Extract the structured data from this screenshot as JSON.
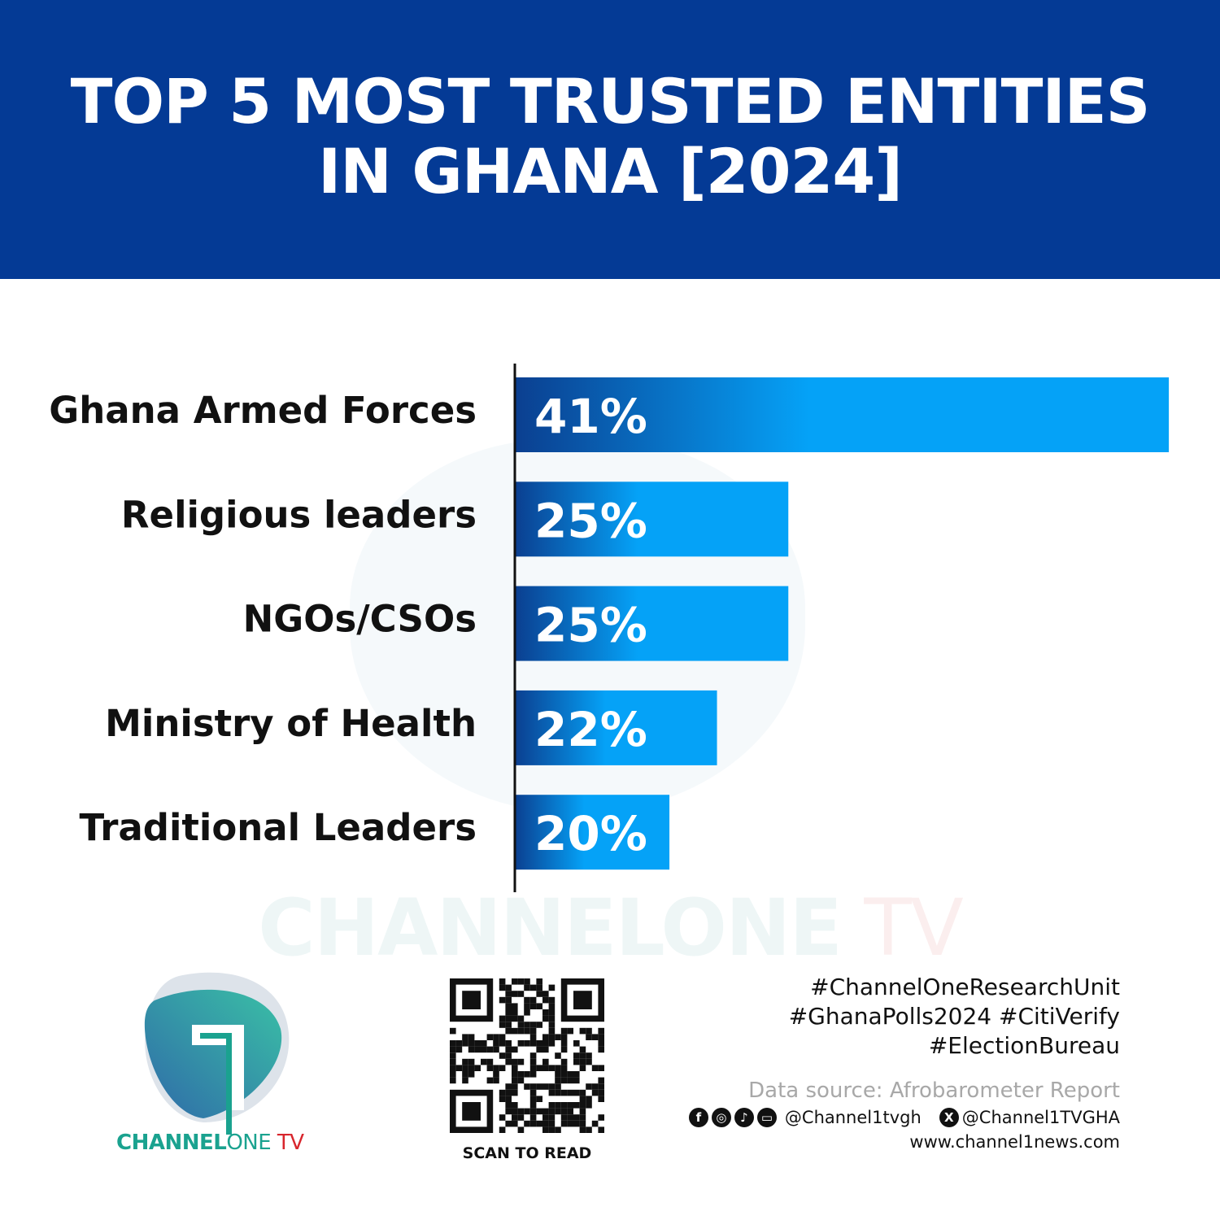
{
  "header": {
    "title_line1": "TOP 5 MOST TRUSTED ENTITIES",
    "title_line2": "IN GHANA [2024]"
  },
  "colors": {
    "header_bg": "#043a95",
    "bar_start": "#0b3f90",
    "bar_end": "#05a2f7"
  },
  "chart_data": {
    "type": "bar",
    "orientation": "horizontal",
    "title": "TOP 5 MOST TRUSTED ENTITIES IN GHANA [2024]",
    "categories": [
      "Ghana Armed Forces",
      "Religious leaders",
      "NGOs/CSOs",
      "Ministry of Health",
      "Traditional Leaders"
    ],
    "values": [
      41,
      25,
      25,
      22,
      20
    ],
    "value_labels": [
      "41%",
      "25%",
      "25%",
      "22%",
      "20%"
    ],
    "unit": "%",
    "grid": false,
    "legend": "none"
  },
  "watermark": {
    "part1": "CHANNELONE",
    "part2": " TV"
  },
  "logo": {
    "text_bold": "CHANNEL",
    "text_one": "ONE",
    "text_tv": " TV"
  },
  "qr": {
    "caption": "SCAN TO READ"
  },
  "footer": {
    "tags": [
      "#ChannelOneResearchUnit",
      "#GhanaPolls2024 #CitiVerify",
      "#ElectionBureau"
    ],
    "source": "Data source: Afrobarometer Report",
    "social_icons": [
      "facebook-icon",
      "instagram-icon",
      "tiktok-icon",
      "youtube-icon"
    ],
    "handle1": "@Channel1tvgh",
    "x_icon": "x-icon",
    "handle2": "@Channel1TVGHA",
    "website": "www.channel1news.com"
  }
}
